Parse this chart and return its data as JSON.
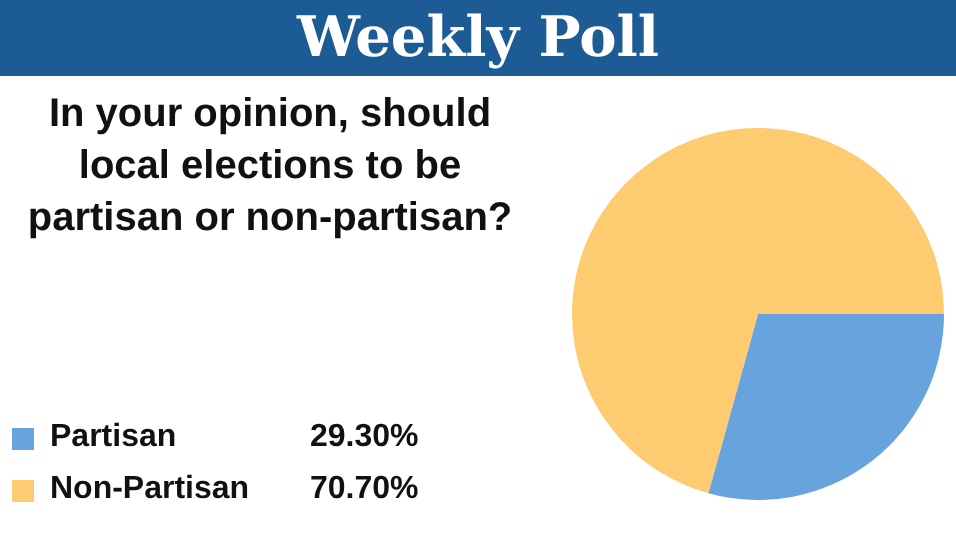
{
  "chart_data": {
    "type": "pie",
    "title": "Weekly Poll",
    "subtitle": "In your opinion, should local elections to be partisan or non-partisan?",
    "categories": [
      "Partisan",
      "Non-Partisan"
    ],
    "values": [
      29.3,
      70.7
    ],
    "value_labels": [
      "29.30%",
      "70.70%"
    ],
    "colors": [
      "#67a3dc",
      "#fdcb70"
    ],
    "legend": "bottom left"
  }
}
